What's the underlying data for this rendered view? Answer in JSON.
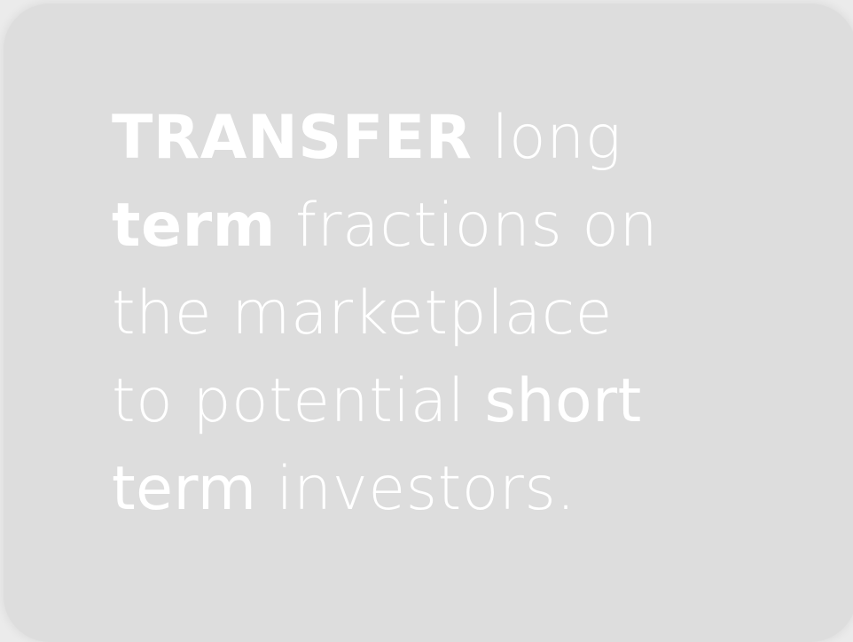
{
  "card": {
    "background": "#dddddd",
    "text_color": "#ffffff",
    "lines": [
      {
        "bold": "TRANSFER",
        "rest": " long"
      },
      {
        "bold": "term",
        "rest": " fractions on"
      },
      {
        "text": "the marketplace"
      },
      {
        "lead": "to potential ",
        "semibold": "short"
      },
      {
        "semibold": "term",
        "rest": " investors."
      }
    ]
  }
}
